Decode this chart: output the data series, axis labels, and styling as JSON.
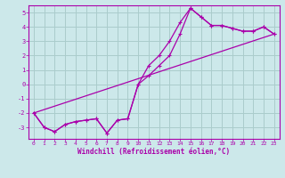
{
  "xlabel": "Windchill (Refroidissement éolien,°C)",
  "background_color": "#cce8ea",
  "grid_color": "#aacccc",
  "line_color": "#aa00aa",
  "xlim": [
    -0.5,
    23.5
  ],
  "ylim": [
    -3.8,
    5.5
  ],
  "xticks": [
    0,
    1,
    2,
    3,
    4,
    5,
    6,
    7,
    8,
    9,
    10,
    11,
    12,
    13,
    14,
    15,
    16,
    17,
    18,
    19,
    20,
    21,
    22,
    23
  ],
  "yticks": [
    -3,
    -2,
    -1,
    0,
    1,
    2,
    3,
    4,
    5
  ],
  "line1_x": [
    0,
    1,
    2,
    3,
    4,
    5,
    6,
    7,
    8,
    9,
    10,
    11,
    12,
    13,
    14,
    15,
    16,
    17,
    18,
    19,
    20,
    21,
    22,
    23
  ],
  "line1_y": [
    -2.0,
    -3.0,
    -3.3,
    -2.8,
    -2.6,
    -2.5,
    -2.4,
    -3.4,
    -2.5,
    -2.4,
    0.0,
    1.3,
    2.0,
    3.0,
    4.3,
    5.3,
    4.7,
    4.1,
    4.1,
    3.9,
    3.7,
    3.7,
    4.0,
    3.5
  ],
  "line2_x": [
    0,
    1,
    2,
    3,
    4,
    5,
    6,
    7,
    8,
    9,
    10,
    11,
    12,
    13,
    14,
    15,
    16,
    17,
    18,
    19,
    20,
    21,
    22,
    23
  ],
  "line2_y": [
    -2.0,
    -3.0,
    -3.3,
    -2.8,
    -2.6,
    -2.5,
    -2.4,
    -3.4,
    -2.5,
    -2.4,
    0.0,
    0.6,
    1.3,
    2.0,
    3.5,
    5.3,
    4.7,
    4.1,
    4.1,
    3.9,
    3.7,
    3.7,
    4.0,
    3.5
  ],
  "line3_x": [
    0,
    23
  ],
  "line3_y": [
    -2.0,
    3.5
  ]
}
